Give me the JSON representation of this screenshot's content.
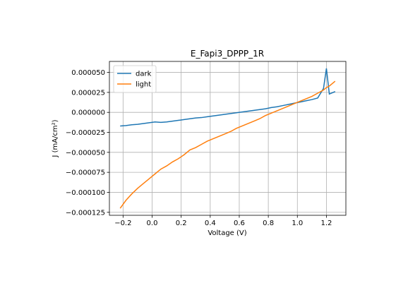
{
  "chart_data": {
    "type": "line",
    "title": "E_Fapi3_DPPP_1R",
    "xlabel": "Voltage (V)",
    "ylabel": "J (mA/cm²)",
    "x": [
      -0.22,
      -0.18,
      -0.14,
      -0.1,
      -0.06,
      -0.02,
      0.02,
      0.06,
      0.1,
      0.14,
      0.18,
      0.22,
      0.26,
      0.3,
      0.34,
      0.38,
      0.42,
      0.46,
      0.5,
      0.54,
      0.58,
      0.62,
      0.66,
      0.7,
      0.74,
      0.78,
      0.82,
      0.86,
      0.9,
      0.94,
      0.98,
      1.02,
      1.06,
      1.1,
      1.14,
      1.18,
      1.2,
      1.22,
      1.26
    ],
    "series": [
      {
        "name": "dark",
        "color": "#1f77b4",
        "values": [
          -1.7e-05,
          -1.65e-05,
          -1.55e-05,
          -1.5e-05,
          -1.4e-05,
          -1.3e-05,
          -1.2e-05,
          -1.25e-05,
          -1.2e-05,
          -1.1e-05,
          -1e-05,
          -9e-06,
          -8e-06,
          -7e-06,
          -6.5e-06,
          -5.5e-06,
          -4.5e-06,
          -3.5e-06,
          -2.5e-06,
          -1.5e-06,
          -5e-07,
          5e-07,
          1.5e-06,
          2.5e-06,
          3.5e-06,
          4.5e-06,
          6e-06,
          7e-06,
          8.5e-06,
          1e-05,
          1.15e-05,
          1.3e-05,
          1.45e-05,
          1.6e-05,
          1.8e-05,
          3e-05,
          5.5e-05,
          2.3e-05,
          2.6e-05
        ]
      },
      {
        "name": "light",
        "color": "#ff7f0e",
        "values": [
          -0.00012,
          -0.00011,
          -0.000102,
          -9.5e-05,
          -8.9e-05,
          -8.3e-05,
          -7.7e-05,
          -7.1e-05,
          -6.7e-05,
          -6.2e-05,
          -5.8e-05,
          -5.3e-05,
          -4.7e-05,
          -4.4e-05,
          -4e-05,
          -3.6e-05,
          -3.3e-05,
          -3e-05,
          -2.7e-05,
          -2.4e-05,
          -2e-05,
          -1.7e-05,
          -1.4e-05,
          -1.1e-05,
          -8e-06,
          -4e-06,
          -1e-06,
          2e-06,
          5e-06,
          8e-06,
          1.1e-05,
          1.4e-05,
          1.7e-05,
          2e-05,
          2.4e-05,
          2.8e-05,
          3.1e-05,
          3.3e-05,
          3.9e-05
        ]
      }
    ],
    "xlim": [
      -0.294,
      1.334
    ],
    "xticks": [
      {
        "value": -0.2,
        "label": "−0.2"
      },
      {
        "value": 0.0,
        "label": "0.0"
      },
      0.2,
      0.4,
      0.6,
      0.8,
      {
        "value": 1.0,
        "label": "1.0"
      },
      1.2
    ],
    "ylim": [
      -0.00012875,
      6.375e-05
    ],
    "yticks": [
      {
        "value": -0.000125,
        "label": "−0.000125"
      },
      {
        "value": -0.0001,
        "label": "−0.000100"
      },
      {
        "value": -7.5e-05,
        "label": "−0.000075"
      },
      {
        "value": -5e-05,
        "label": "−0.000050"
      },
      {
        "value": -2.5e-05,
        "label": "−0.000025"
      },
      {
        "value": 0,
        "label": "0.000000"
      },
      {
        "value": 2.5e-05,
        "label": "0.000025"
      },
      {
        "value": 5e-05,
        "label": "0.000050"
      }
    ],
    "grid": true,
    "legend": "upper left"
  }
}
